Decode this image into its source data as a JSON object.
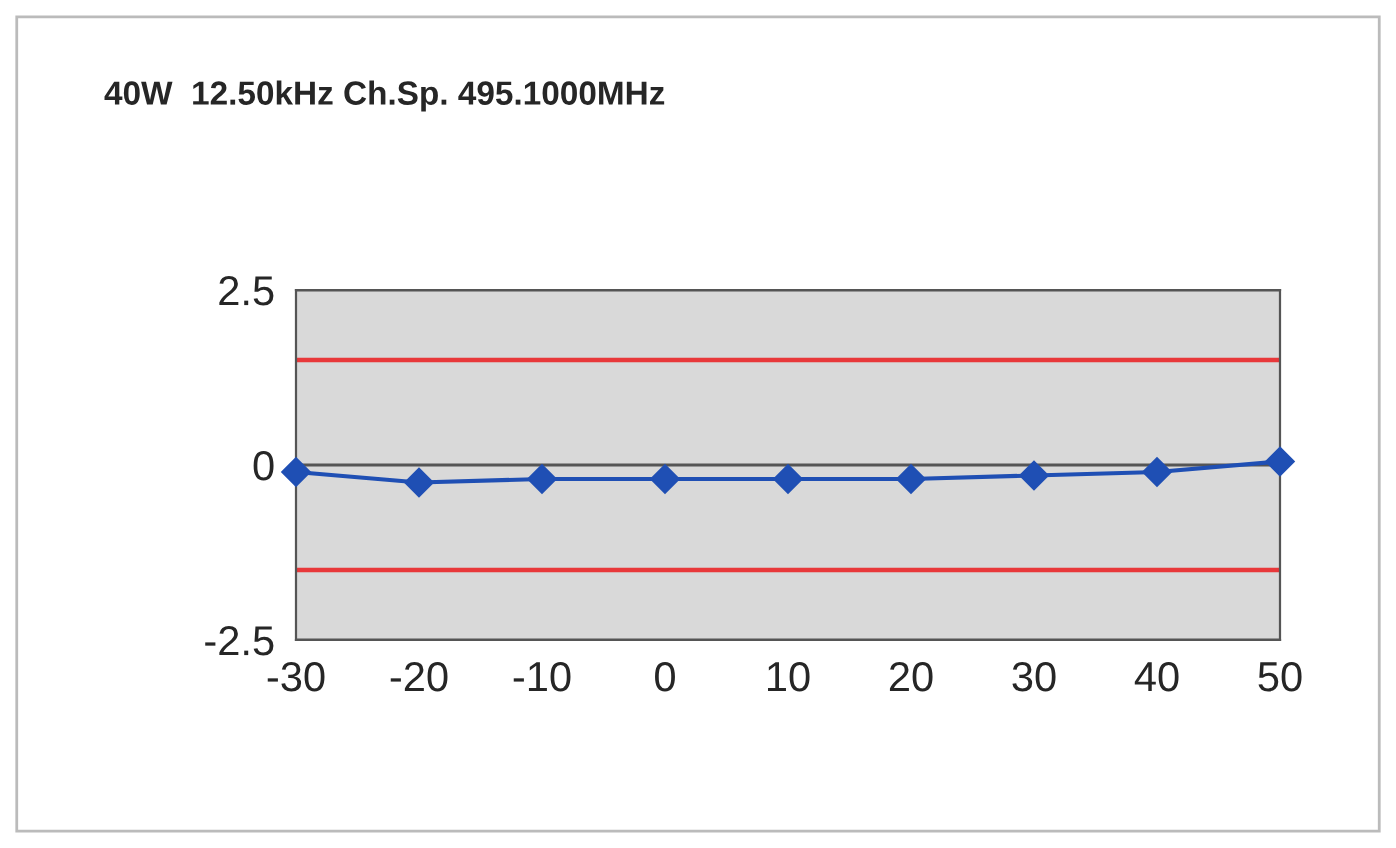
{
  "chart_data": {
    "type": "line",
    "title": "40W  12.50kHz Ch.Sp. 495.1000MHz",
    "x": [
      -30,
      -20,
      -10,
      0,
      10,
      20,
      30,
      40,
      50
    ],
    "series": [
      {
        "color": "#1f4fb4",
        "values": [
          -0.1,
          -0.25,
          -0.2,
          -0.2,
          -0.2,
          -0.2,
          -0.15,
          -0.1,
          0.05
        ]
      }
    ],
    "marker": "diamond",
    "line_style": "solid",
    "xlim": [
      -30,
      50
    ],
    "xticks": [
      -30,
      -20,
      -10,
      0,
      10,
      20,
      30,
      40,
      50
    ],
    "ylim": [
      -2.5,
      2.5
    ],
    "yticks": [
      {
        "value": -2.5,
        "label": "-2.5"
      },
      0,
      2.5
    ],
    "grid": "y",
    "ref_lines": [
      {
        "axis": "y",
        "value": 1.5,
        "color": "#e8383a"
      },
      {
        "axis": "y",
        "value": -1.5,
        "color": "#e8383a"
      }
    ]
  }
}
